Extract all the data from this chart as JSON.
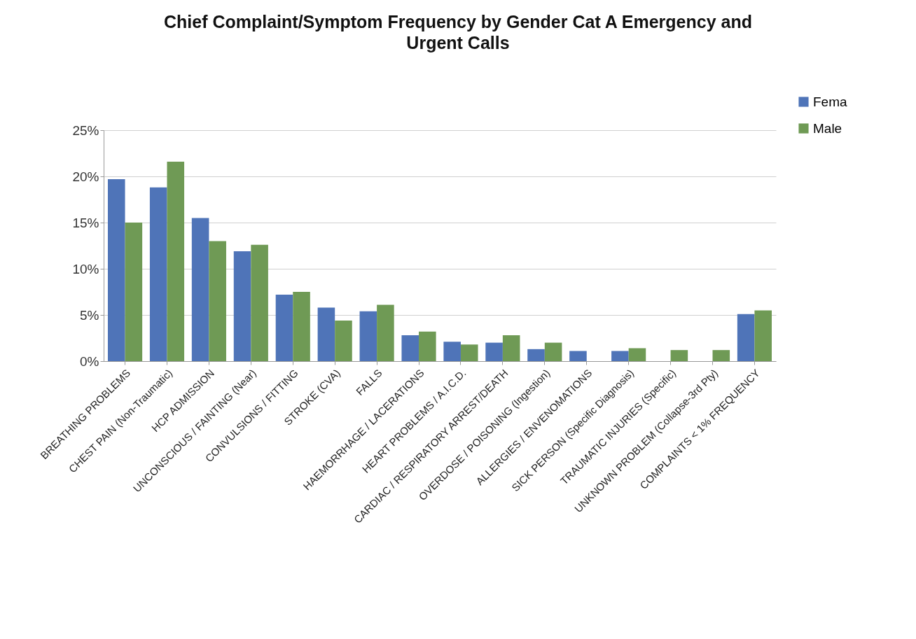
{
  "chart_data": {
    "type": "bar",
    "title": "Chief Complaint/Symptom Frequency by Gender Cat A Emergency and Urgent Calls",
    "categories": [
      "BREATHING PROBLEMS",
      "CHEST PAIN (Non-Traumatic)",
      "HCP ADMISSION",
      "UNCONSCIOUS / FAINTING (Near)",
      "CONVULSIONS / FITTING",
      "STROKE (CVA)",
      "FALLS",
      "HAEMORRHAGE / LACERATIONS",
      "HEART PROBLEMS / A.I.C.D.",
      "CARDIAC / RESPIRATORY ARREST/DEATH",
      "OVERDOSE / POISONING (Ingestion)",
      "ALLERGIES / ENVENOMATIONS",
      "SICK PERSON (Specific Diagnosis)",
      "TRAUMATIC INJURIES (Specific)",
      "UNKNOWN PROBLEM (Collapse-3rd Pty)",
      "COMPLAINTS < 1% FREQUENCY"
    ],
    "series": [
      {
        "name": "Fema",
        "color": "#4f74b8",
        "values": [
          19.7,
          18.8,
          15.5,
          11.9,
          7.2,
          5.8,
          5.4,
          2.8,
          2.1,
          2.0,
          1.3,
          1.1,
          1.1,
          null,
          null,
          5.1
        ]
      },
      {
        "name": "Male",
        "color": "#6f9a55",
        "values": [
          15.0,
          21.6,
          13.0,
          12.6,
          7.5,
          4.4,
          6.1,
          3.2,
          1.8,
          2.8,
          2.0,
          null,
          1.4,
          1.2,
          1.2,
          5.5
        ]
      }
    ],
    "ylim": [
      0,
      25
    ],
    "yticks": [
      {
        "value": 0,
        "label": "0%"
      },
      {
        "value": 5,
        "label": "5%"
      },
      {
        "value": 10,
        "label": "10%"
      },
      {
        "value": 15,
        "label": "15%"
      },
      {
        "value": 20,
        "label": "20%"
      },
      {
        "value": 25,
        "label": "25%"
      }
    ],
    "grid": "y",
    "legend": "top right"
  }
}
